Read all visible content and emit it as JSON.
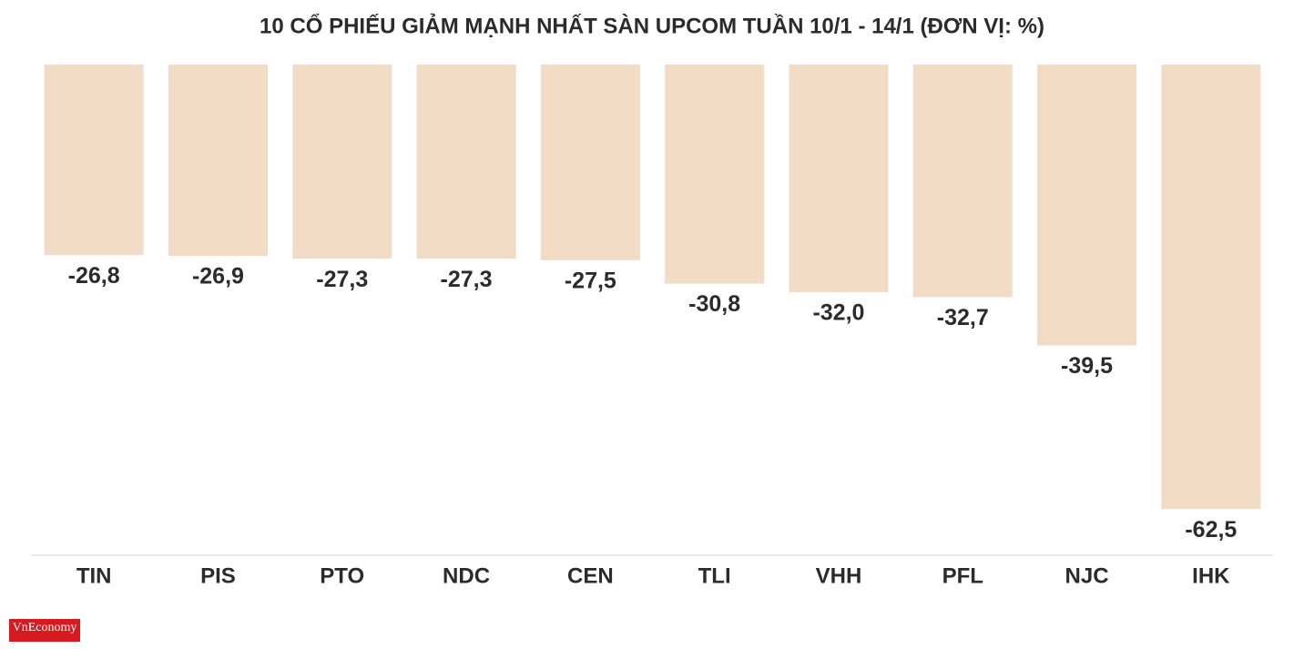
{
  "chart_data": {
    "type": "bar",
    "title": "10 CỔ PHIẾU GIẢM MẠNH NHẤT SÀN UPCOM TUẦN 10/1 - 14/1 (ĐƠN VỊ: %)",
    "categories": [
      "TIN",
      "PIS",
      "PTO",
      "NDC",
      "CEN",
      "TLI",
      "VHH",
      "PFL",
      "NJC",
      "IHK"
    ],
    "values": [
      -26.8,
      -26.9,
      -27.3,
      -27.3,
      -27.5,
      -30.8,
      -32.0,
      -32.7,
      -39.5,
      -62.5
    ],
    "value_labels": [
      "-26,8",
      "-26,9",
      "-27,3",
      "-27,3",
      "-27,5",
      "-30,8",
      "-32,0",
      "-32,7",
      "-39,5",
      "-62,5"
    ],
    "color": "#f2dcc6",
    "ylim": [
      -69,
      0
    ],
    "grid": false
  },
  "logo": "VnEconomy"
}
